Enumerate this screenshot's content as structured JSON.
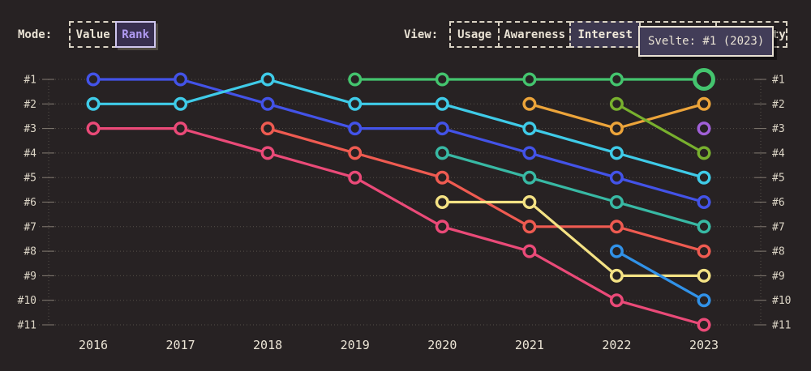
{
  "colors": {
    "background": "#272223",
    "text": "#e9e2d4",
    "grid": "#56504a",
    "tick": "#847c73",
    "mode_selected_text": "#b19bf2",
    "mode_selected_bg": "#382f50",
    "view_selected_bg": "#3d384f",
    "tooltip_bg": "#423d58"
  },
  "controls": {
    "mode": {
      "label": "Mode:",
      "options": [
        {
          "label": "Value",
          "selected": false
        },
        {
          "label": "Rank",
          "selected": true
        }
      ]
    },
    "view": {
      "label": "View:",
      "options": [
        {
          "label": "Usage",
          "selected": false
        },
        {
          "label": "Awareness",
          "selected": false
        },
        {
          "label": "Interest",
          "selected": true
        },
        {
          "label": "",
          "selected": false
        },
        {
          "label": "Positivity",
          "selected": false
        }
      ]
    }
  },
  "tooltip": {
    "text": "Svelte: #1 (2023)"
  },
  "chart_data": {
    "type": "line",
    "subtype": "bump-rank",
    "title": "",
    "xlabel": "",
    "ylabel": "",
    "x_labels": [
      "2016",
      "2017",
      "2018",
      "2019",
      "2020",
      "2021",
      "2022",
      "2023"
    ],
    "rank_labels": [
      "#1",
      "#2",
      "#3",
      "#4",
      "#5",
      "#6",
      "#7",
      "#8",
      "#9",
      "#10",
      "#11"
    ],
    "axis": {
      "ranks": 11,
      "grid": "dotted horizontal rows",
      "y_axis_sides": "both",
      "y_inverted_rank": true
    },
    "series": [
      {
        "name": "pink",
        "color": "#ea4a78",
        "ranks": [
          3,
          3,
          4,
          5,
          7,
          8,
          10,
          11
        ]
      },
      {
        "name": "blue",
        "color": "#4353e8",
        "ranks": [
          1,
          1,
          2,
          3,
          3,
          4,
          5,
          6
        ]
      },
      {
        "name": "cyan",
        "color": "#3fcbe8",
        "ranks": [
          2,
          2,
          1,
          2,
          2,
          3,
          4,
          5
        ]
      },
      {
        "name": "coral",
        "color": "#ef5b51",
        "ranks": [
          null,
          null,
          3,
          4,
          5,
          7,
          7,
          8
        ]
      },
      {
        "name": "teal",
        "color": "#38b9a4",
        "ranks": [
          null,
          null,
          null,
          null,
          4,
          5,
          6,
          7
        ]
      },
      {
        "name": "yellow",
        "color": "#f4e284",
        "ranks": [
          null,
          null,
          null,
          null,
          6,
          6,
          9,
          9
        ]
      },
      {
        "name": "orange",
        "color": "#eca43a",
        "ranks": [
          null,
          null,
          null,
          null,
          null,
          2,
          3,
          2
        ]
      },
      {
        "name": "azure",
        "color": "#3192e8",
        "ranks": [
          null,
          null,
          null,
          null,
          null,
          null,
          8,
          10
        ]
      },
      {
        "name": "olive",
        "color": "#78b02e",
        "ranks": [
          null,
          null,
          null,
          null,
          null,
          null,
          2,
          4
        ]
      },
      {
        "name": "purple",
        "color": "#a160d8",
        "ranks": [
          null,
          null,
          null,
          null,
          null,
          null,
          null,
          3
        ]
      },
      {
        "name": "Svelte",
        "color": "#44c46e",
        "ranks": [
          null,
          null,
          null,
          1,
          1,
          1,
          1,
          1
        ]
      }
    ],
    "hover_point": {
      "series": "Svelte",
      "year": "2023",
      "rank": 1
    }
  }
}
